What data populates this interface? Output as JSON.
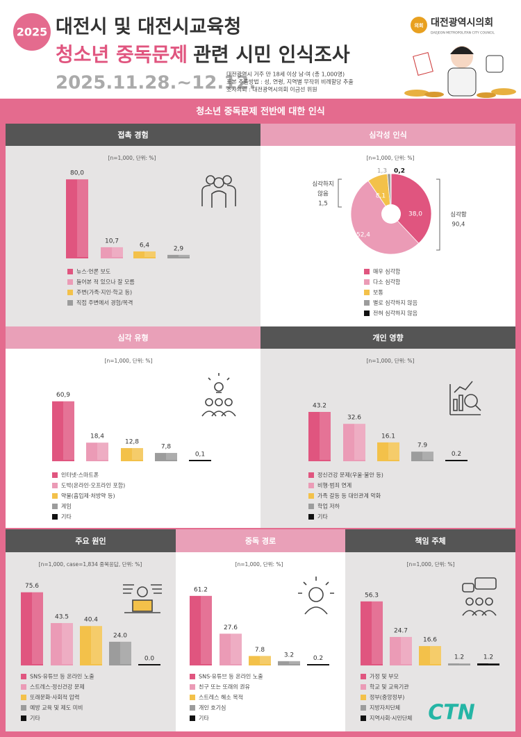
{
  "header": {
    "badge": "2025",
    "title_line1": "대전시 및 대전시교육청",
    "title_highlight": "청소년 중독문제",
    "title_rest": "관련 시민 인식조사",
    "period": "2025.11.28.~12.12.",
    "info": [
      "대전광역시 거주 만 18세 이상 남·여 (총 1,000명)",
      "표본 추출방법 : 성, 연령, 지역별 무작위 비례할당 추출",
      "조사의뢰 : 대전광역시의회 이금선 위원"
    ],
    "logo_mark": "의회",
    "logo_name": "대전광역시의회",
    "logo_sub": "DAEJEON METROPOLITAN CITY COUNCIL"
  },
  "section_title": "청소년 중독문제 전반에 대한 인식",
  "footer_logo": "CTN",
  "chart_data": [
    {
      "type": "bar",
      "title": "접촉 경험",
      "note": "[n=1,000, 단위: %]",
      "categories": [
        "뉴스·언론 보도",
        "들어본 적 있으나 잘 모름",
        "주변(가족·지인·학교 등)",
        "직접 주변에서 경험/목격"
      ],
      "values": [
        80.0,
        10.7,
        6.4,
        2.9
      ],
      "value_labels": [
        "80,0",
        "10,7",
        "6,4",
        "2,9"
      ],
      "colors": [
        "#e0557f",
        "#eb9bb6",
        "#f3c14a",
        "#9c9c9c"
      ]
    },
    {
      "type": "pie",
      "title": "심각성 인식",
      "note": "[n=1,000, 단위: %]",
      "categories": [
        "매우 심각함",
        "다소 심각함",
        "보통",
        "별로 심각하지 않음",
        "전혀 심각하지 않음"
      ],
      "values": [
        38.0,
        52.4,
        8.1,
        1.3,
        0.2
      ],
      "value_labels": [
        "38,0",
        "52,4",
        "8,1",
        "1,3",
        "0,2"
      ],
      "colors": [
        "#e0557f",
        "#eb9bb6",
        "#f3c14a",
        "#9c9c9c",
        "#111111"
      ],
      "annotations": [
        {
          "lines": [
            "심각함",
            "90,4"
          ]
        },
        {
          "lines": [
            "심각하지",
            "않음",
            "1,5"
          ]
        }
      ]
    },
    {
      "type": "bar",
      "title": "심각 유형",
      "note": "[n=1,000, 단위: %]",
      "categories": [
        "인터넷·스마트폰",
        "도박(온라인·오프라인 포함)",
        "약물(흡입제·처방약 등)",
        "게임",
        "기타"
      ],
      "values": [
        60.9,
        18.4,
        12.8,
        7.8,
        0.1
      ],
      "value_labels": [
        "60,9",
        "18,4",
        "12,8",
        "7,8",
        "0,1"
      ],
      "colors": [
        "#e0557f",
        "#eb9bb6",
        "#f3c14a",
        "#9c9c9c",
        "#111111"
      ]
    },
    {
      "type": "bar",
      "title": "개인 영향",
      "note": "[n=1,000, 단위: %]",
      "categories": [
        "정신건강 문제(우울·불안 등)",
        "비행·범죄 연계",
        "가족 갈등 등 대인관계 악화",
        "학업 저하",
        "기타"
      ],
      "values": [
        43.2,
        32.6,
        16.1,
        7.9,
        0.2
      ],
      "colors": [
        "#e0557f",
        "#eb9bb6",
        "#f3c14a",
        "#9c9c9c",
        "#111111"
      ]
    },
    {
      "type": "bar",
      "title": "주요 원인",
      "note": "[n=1,000, case=1,834 중복응답, 단위: %]",
      "categories": [
        "SNS·유튜브 등 온라인 노출",
        "스트레스·정신건강 문제",
        "또래문화·사회적 압력",
        "예방 교육 및 제도 미비",
        "기타"
      ],
      "values": [
        75.6,
        43.5,
        40.4,
        24.0,
        0.0
      ],
      "value_labels": [
        "75.6",
        "43.5",
        "40.4",
        "24.0",
        "0.0"
      ],
      "colors": [
        "#e0557f",
        "#eb9bb6",
        "#f3c14a",
        "#9c9c9c",
        "#111111"
      ]
    },
    {
      "type": "bar",
      "title": "중독 경로",
      "note": "[n=1,000, 단위: %]",
      "categories": [
        "SNS·유튜브 등 온라인 노출",
        "친구 또는 또래의 권유",
        "스트레스 해소 목적",
        "개인 호기심",
        "기타"
      ],
      "values": [
        61.2,
        27.6,
        7.8,
        3.2,
        0.2
      ],
      "colors": [
        "#e0557f",
        "#eb9bb6",
        "#f3c14a",
        "#9c9c9c",
        "#111111"
      ]
    },
    {
      "type": "bar",
      "title": "책임 주체",
      "note": "[n=1,000, 단위: %]",
      "categories": [
        "가정 및 부모",
        "학교 및 교육기관",
        "정부(중앙정부)",
        "지방자치단체",
        "지역사회·시민단체"
      ],
      "values": [
        56.3,
        24.7,
        16.6,
        1.2,
        1.2
      ],
      "colors": [
        "#e0557f",
        "#eb9bb6",
        "#f3c14a",
        "#9c9c9c",
        "#111111"
      ]
    }
  ]
}
